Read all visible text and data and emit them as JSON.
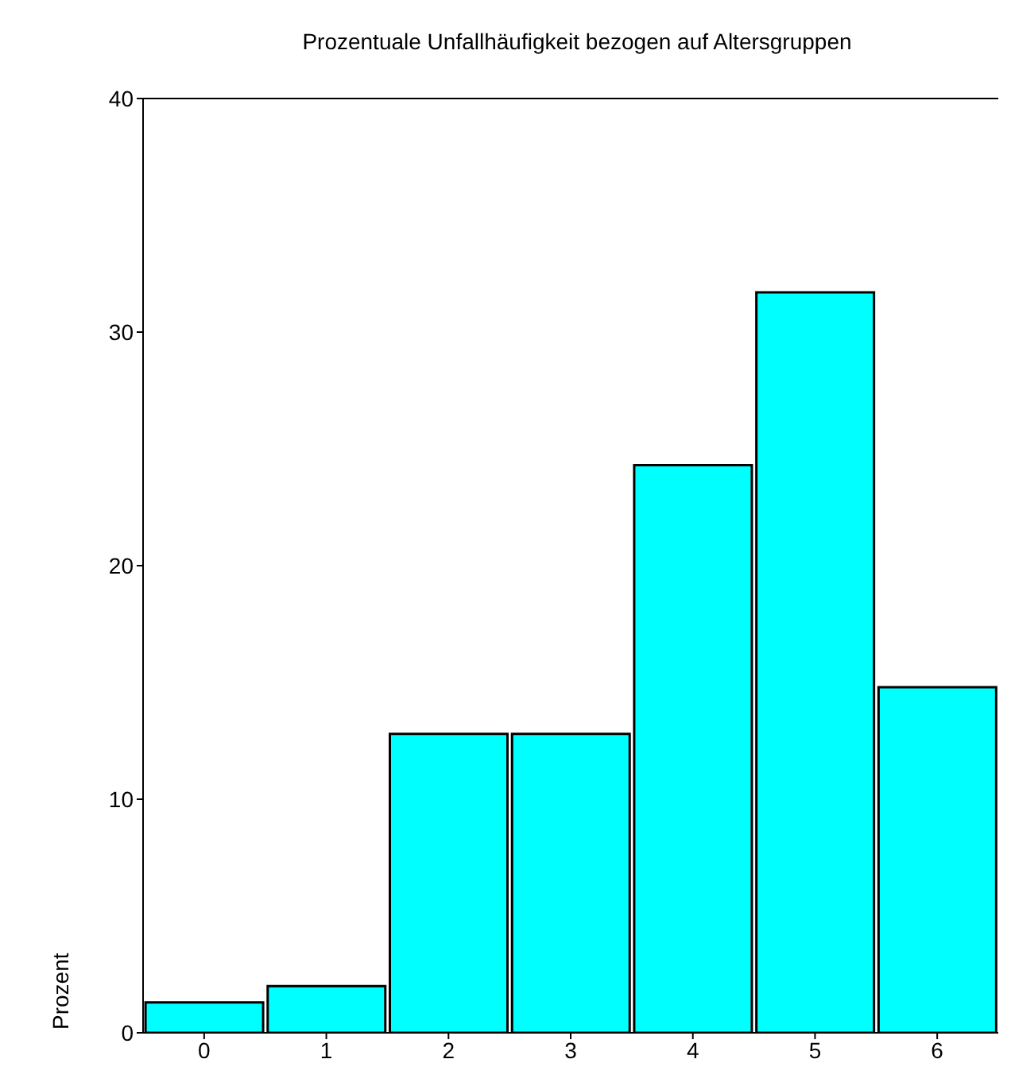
{
  "chart_data": {
    "type": "bar",
    "title": "Prozentuale Unfallhäufigkeit bezogen auf Altersgruppen",
    "ylabel": "Prozent",
    "categories": [
      "0",
      "1",
      "2",
      "3",
      "4",
      "5",
      "6"
    ],
    "values": [
      1.3,
      2.0,
      12.8,
      12.8,
      24.3,
      31.7,
      14.8
    ],
    "color": "#00ffff",
    "ylim": [
      0,
      40
    ],
    "yticks": [
      0,
      10,
      20,
      30,
      40
    ],
    "grid": false,
    "legend": false
  }
}
